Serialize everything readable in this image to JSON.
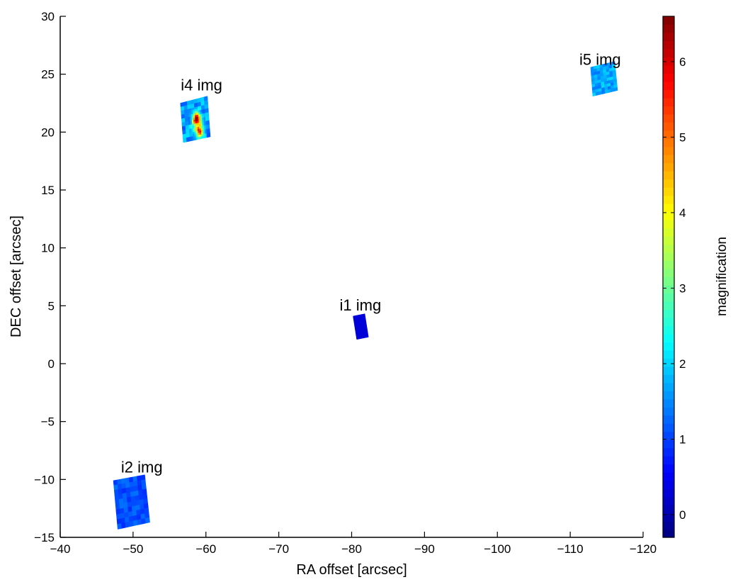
{
  "chart_data": {
    "type": "heatmap",
    "xlabel": "RA offset [arcsec]",
    "ylabel": "DEC offset [arcsec]",
    "xlim": [
      -40,
      -120
    ],
    "ylim": [
      -15,
      30
    ],
    "x_ticks": [
      -40,
      -50,
      -60,
      -70,
      -80,
      -90,
      -100,
      -110,
      -120
    ],
    "y_ticks": [
      -15,
      -10,
      -5,
      0,
      5,
      10,
      15,
      20,
      25,
      30
    ],
    "x_tick_labels": [
      "−40",
      "−50",
      "−60",
      "−70",
      "−80",
      "−90",
      "−100",
      "−110",
      "−120"
    ],
    "y_tick_labels": [
      "−15",
      "−10",
      "−5",
      "0",
      "5",
      "10",
      "15",
      "20",
      "25",
      "30"
    ],
    "grid": false,
    "colorbar": {
      "label": "magnification",
      "range": [
        -0.3,
        6.6
      ],
      "ticks": [
        0,
        1,
        2,
        3,
        4,
        5,
        6
      ],
      "tick_labels": [
        "0",
        "1",
        "2",
        "3",
        "4",
        "5",
        "6"
      ],
      "colormap": "jet"
    },
    "images": [
      {
        "label": "i1 img",
        "label_pos": [
          -81.2,
          4.6
        ],
        "corners": [
          [
            -80.2,
            4.1
          ],
          [
            -81.8,
            4.3
          ],
          [
            -82.3,
            2.3
          ],
          [
            -80.7,
            2.1
          ]
        ],
        "base_magnification": 0.3,
        "variation": 0.05
      },
      {
        "label": "i2 img",
        "label_pos": [
          -51.2,
          -9.4
        ],
        "corners": [
          [
            -47.3,
            -10.1
          ],
          [
            -51.6,
            -9.6
          ],
          [
            -52.3,
            -13.7
          ],
          [
            -47.9,
            -14.3
          ]
        ],
        "base_magnification": 1.1,
        "variation": 0.25
      },
      {
        "label": "i4 img",
        "label_pos": [
          -59.4,
          23.6
        ],
        "corners": [
          [
            -56.5,
            22.5
          ],
          [
            -60.2,
            23.1
          ],
          [
            -60.6,
            19.6
          ],
          [
            -56.9,
            19.1
          ]
        ],
        "base_magnification": 1.6,
        "variation": 0.5,
        "hotspots": [
          {
            "x": -58.7,
            "y": 21.2,
            "peak": 5.6,
            "sigma": 0.35
          },
          {
            "x": -59.2,
            "y": 20.0,
            "peak": 5.2,
            "sigma": 0.3
          },
          {
            "x": -58.9,
            "y": 20.6,
            "peak": 3.5,
            "sigma": 0.5
          }
        ]
      },
      {
        "label": "i5 img",
        "label_pos": [
          -114.1,
          25.8
        ],
        "corners": [
          [
            -112.8,
            25.6
          ],
          [
            -116.1,
            26.1
          ],
          [
            -116.5,
            23.6
          ],
          [
            -113.1,
            23.1
          ]
        ],
        "base_magnification": 1.7,
        "variation": 0.35
      }
    ]
  }
}
